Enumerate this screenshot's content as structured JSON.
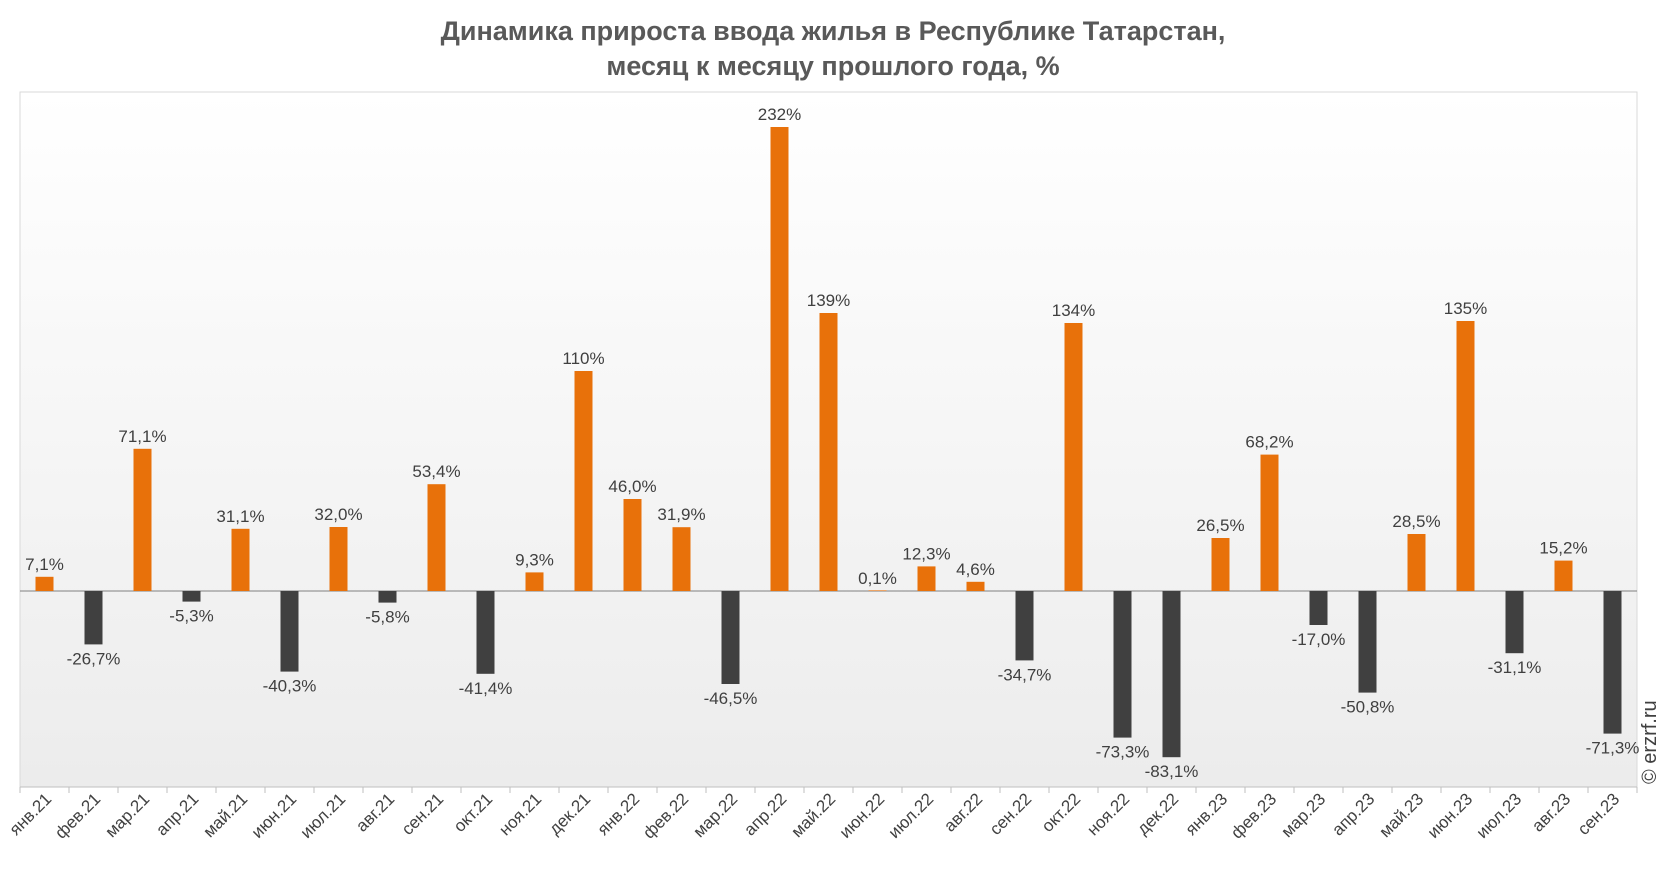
{
  "chart_data": {
    "type": "bar",
    "title": "Динамика прироста ввода жилья в Республике Татарстан,",
    "subtitle": "месяц к месяцу прошлого года, %",
    "categories": [
      "янв.21",
      "фев.21",
      "мар.21",
      "апр.21",
      "май.21",
      "июн.21",
      "июл.21",
      "авг.21",
      "сен.21",
      "окт.21",
      "ноя.21",
      "дек.21",
      "янв.22",
      "фев.22",
      "мар.22",
      "апр.22",
      "май.22",
      "июн.22",
      "июл.22",
      "авг.22",
      "сен.22",
      "окт.22",
      "ноя.22",
      "дек.22",
      "янв.23",
      "фев.23",
      "мар.23",
      "апр.23",
      "май.23",
      "июн.23",
      "июл.23",
      "авг.23",
      "сен.23"
    ],
    "values": [
      7.1,
      -26.7,
      71.1,
      -5.3,
      31.1,
      -40.3,
      32.0,
      -5.8,
      53.4,
      -41.4,
      9.3,
      110,
      46.0,
      31.9,
      -46.5,
      232,
      139,
      0.1,
      12.3,
      4.6,
      -34.7,
      134,
      -73.3,
      -83.1,
      26.5,
      68.2,
      -17.0,
      -50.8,
      28.5,
      135,
      -31.1,
      15.2,
      -71.3
    ],
    "data_labels": [
      "7,1%",
      "-26,7%",
      "71,1%",
      "-5,3%",
      "31,1%",
      "-40,3%",
      "32,0%",
      "-5,8%",
      "53,4%",
      "-41,4%",
      "9,3%",
      "110%",
      "46,0%",
      "31,9%",
      "-46,5%",
      "232%",
      "139%",
      "0,1%",
      "12,3%",
      "4,6%",
      "-34,7%",
      "134%",
      "-73,3%",
      "-83,1%",
      "26,5%",
      "68,2%",
      "-17,0%",
      "-50,8%",
      "28,5%",
      "135%",
      "-31,1%",
      "15,2%",
      "-71,3%"
    ],
    "xlabel": "",
    "ylabel": "",
    "ylim": [
      -100,
      250
    ],
    "grid": false,
    "legend": "none",
    "colors": {
      "positive": "#E8710A",
      "negative": "#404040",
      "axis": "#808080",
      "frame": "#D9D9D9"
    }
  },
  "watermark": "© erzrf.ru"
}
